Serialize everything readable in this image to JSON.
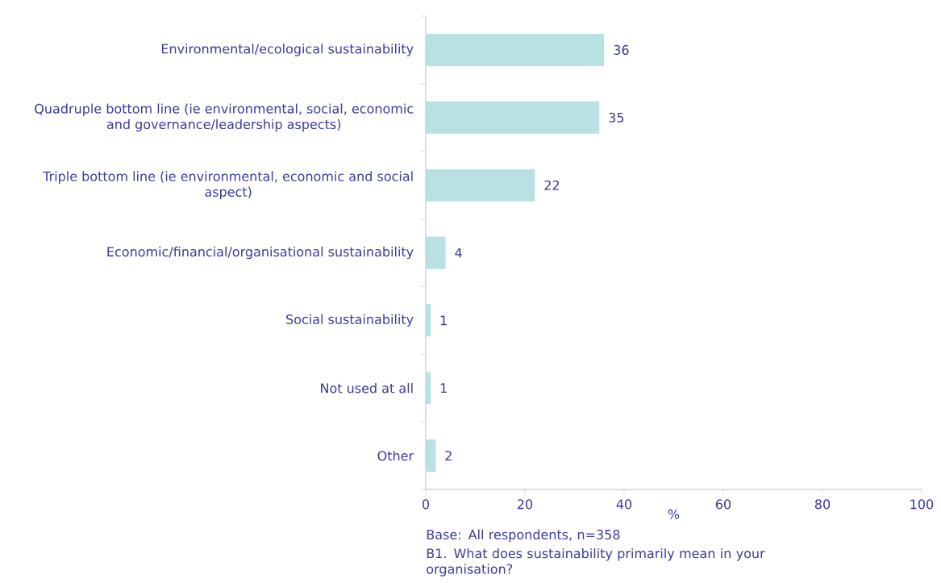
{
  "chart_data": {
    "type": "bar",
    "orientation": "horizontal",
    "categories": [
      "Environmental/ecological sustainability",
      "Quadruple bottom line (ie environmental, social, economic and governance/leadership aspects)",
      "Triple bottom line (ie environmental, economic and social aspect)",
      "Economic/financial/organisational sustainability",
      "Social sustainability",
      "Not used at all",
      "Other"
    ],
    "values": [
      36,
      35,
      22,
      4,
      1,
      1,
      2
    ],
    "color": "#b9e1e3",
    "data_labels": true,
    "xlim": [
      0,
      100
    ],
    "xticks": [
      0,
      20,
      40,
      60,
      80,
      100
    ],
    "xlabel": "%",
    "annotations": [
      "Base: All respondents, n=358",
      "B1. What does sustainability primarily mean in your organisation?"
    ]
  }
}
